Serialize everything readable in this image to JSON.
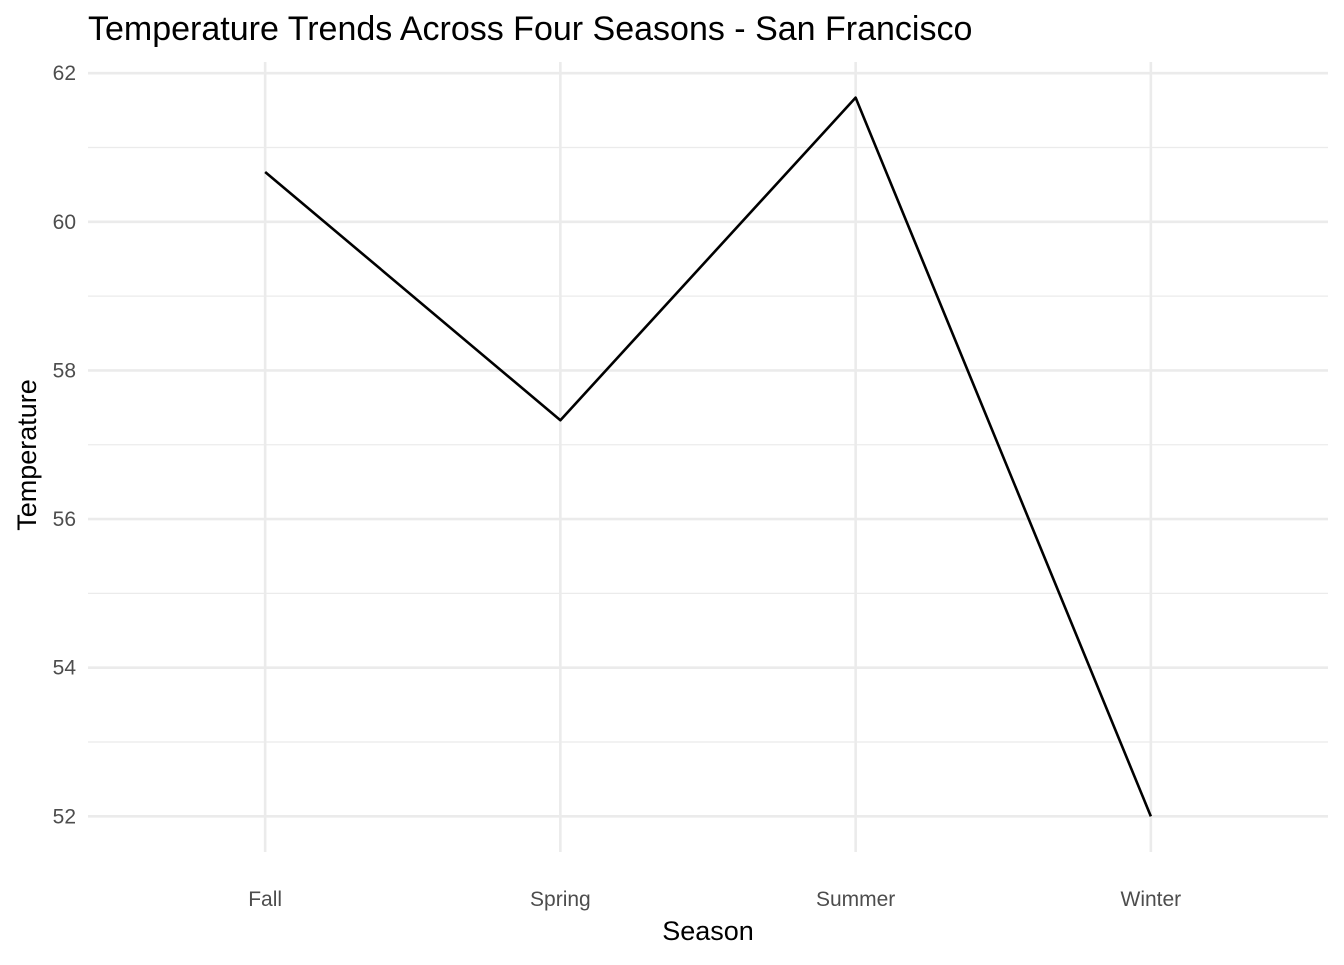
{
  "chart_data": {
    "type": "line",
    "title": "Temperature Trends Across Four Seasons - San Francisco",
    "xlabel": "Season",
    "ylabel": "Temperature",
    "categories": [
      "Fall",
      "Spring",
      "Summer",
      "Winter"
    ],
    "series": [
      {
        "values": [
          60.67,
          57.33,
          61.67,
          52.0
        ],
        "color": "#000000"
      }
    ],
    "ylim": [
      51.52,
      62.15
    ],
    "y_ticks": [
      52,
      54,
      56,
      58,
      60,
      62
    ],
    "y_minor_ticks": [
      53,
      55,
      57,
      59,
      61
    ],
    "grid": true,
    "legend": "none",
    "colors": {
      "background": "#ffffff",
      "grid": "#ebebeb",
      "tick_text": "#4d4d4d",
      "text": "#000000"
    }
  }
}
